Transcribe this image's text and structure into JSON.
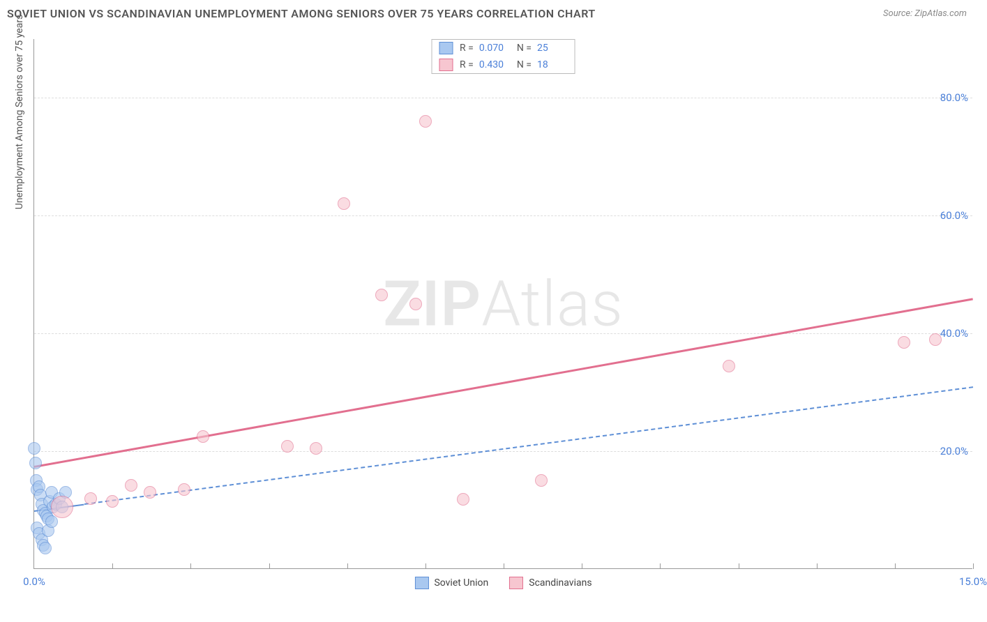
{
  "title": "SOVIET UNION VS SCANDINAVIAN UNEMPLOYMENT AMONG SENIORS OVER 75 YEARS CORRELATION CHART",
  "source": "Source: ZipAtlas.com",
  "watermark_a": "ZIP",
  "watermark_b": "Atlas",
  "chart": {
    "type": "scatter",
    "xlim": [
      0,
      15
    ],
    "ylim": [
      0,
      90
    ],
    "xticks": [
      0,
      1.25,
      2.5,
      3.75,
      5,
      6.25,
      7.5,
      8.75,
      10,
      11.25,
      12.5,
      13.75,
      15
    ],
    "xtick_labels": {
      "0": "0.0%",
      "15": "15.0%"
    },
    "yticks": [
      20,
      40,
      60,
      80
    ],
    "ytick_labels": {
      "20": "20.0%",
      "40": "40.0%",
      "60": "60.0%",
      "80": "80.0%"
    },
    "yaxis_label": "Unemployment Among Seniors over 75 years",
    "background_color": "#ffffff",
    "grid_color": "#dddddd",
    "axis_color": "#999999",
    "tick_label_color": "#4a7fd8",
    "point_radius": 9,
    "point_stroke_width": 1,
    "series": [
      {
        "name": "Soviet Union",
        "fill": "#a9c8f0",
        "fill_opacity": 0.6,
        "stroke": "#5e8fd6",
        "r_value": "0.070",
        "n_value": "25",
        "trend": {
          "x1": 0.0,
          "y1": 10.0,
          "x2": 15.0,
          "y2": 31.0,
          "color": "#5e8fd6",
          "width": 2,
          "dash": true,
          "solid_until_x": 0.8
        },
        "points": [
          [
            0.0,
            20.5
          ],
          [
            0.02,
            18.0
          ],
          [
            0.03,
            15.0
          ],
          [
            0.05,
            13.5
          ],
          [
            0.08,
            14.0
          ],
          [
            0.1,
            12.5
          ],
          [
            0.12,
            11.0
          ],
          [
            0.15,
            10.0
          ],
          [
            0.18,
            9.5
          ],
          [
            0.2,
            9.0
          ],
          [
            0.22,
            8.5
          ],
          [
            0.25,
            11.5
          ],
          [
            0.28,
            13.0
          ],
          [
            0.3,
            10.5
          ],
          [
            0.05,
            7.0
          ],
          [
            0.08,
            6.0
          ],
          [
            0.12,
            5.0
          ],
          [
            0.15,
            4.0
          ],
          [
            0.18,
            3.5
          ],
          [
            0.22,
            6.5
          ],
          [
            0.28,
            8.0
          ],
          [
            0.35,
            11.0
          ],
          [
            0.4,
            12.0
          ],
          [
            0.45,
            10.5
          ],
          [
            0.5,
            13.0
          ]
        ]
      },
      {
        "name": "Scandinavians",
        "fill": "#f7c6d0",
        "fill_opacity": 0.6,
        "stroke": "#e26f8f",
        "r_value": "0.430",
        "n_value": "18",
        "trend": {
          "x1": 0.0,
          "y1": 17.5,
          "x2": 15.0,
          "y2": 46.0,
          "color": "#e26f8f",
          "width": 3,
          "dash": false
        },
        "points": [
          [
            0.45,
            10.5,
            16
          ],
          [
            0.9,
            12.0
          ],
          [
            1.25,
            11.5
          ],
          [
            1.55,
            14.2
          ],
          [
            1.85,
            13.0
          ],
          [
            2.4,
            13.5
          ],
          [
            2.7,
            22.5
          ],
          [
            4.05,
            20.8
          ],
          [
            4.5,
            20.5
          ],
          [
            4.95,
            62.0
          ],
          [
            5.55,
            46.5
          ],
          [
            6.1,
            45.0
          ],
          [
            6.25,
            76.0
          ],
          [
            6.85,
            11.8
          ],
          [
            8.1,
            15.0
          ],
          [
            11.1,
            34.5
          ],
          [
            13.9,
            38.5
          ],
          [
            14.4,
            39.0
          ]
        ]
      }
    ],
    "legend_bottom": [
      {
        "label": "Soviet Union",
        "fill": "#a9c8f0",
        "stroke": "#5e8fd6"
      },
      {
        "label": "Scandinavians",
        "fill": "#f7c6d0",
        "stroke": "#e26f8f"
      }
    ]
  }
}
